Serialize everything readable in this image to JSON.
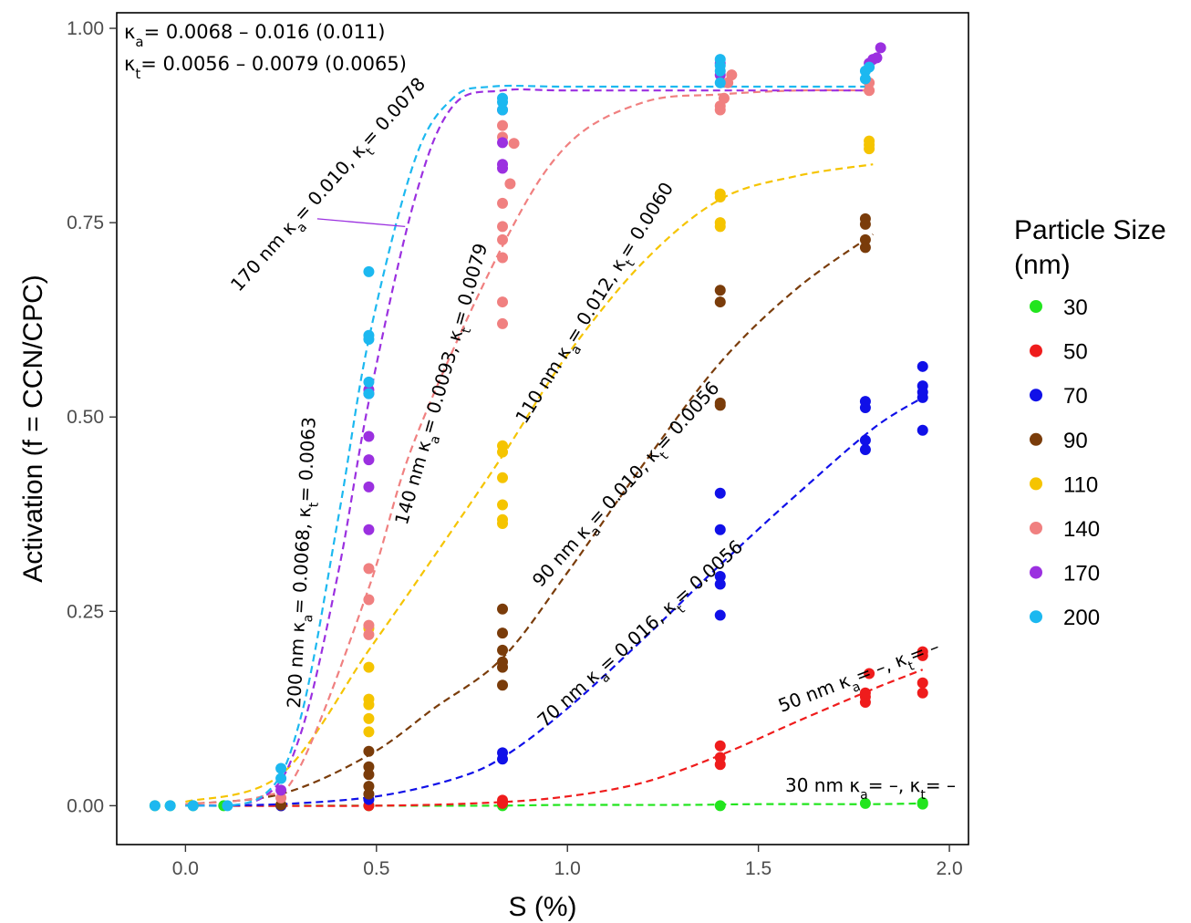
{
  "chart_data": {
    "type": "scatter",
    "xlabel": "S (%)",
    "ylabel": "Activation (f = CCN/CPC)",
    "xlim": [
      -0.18,
      2.05
    ],
    "ylim": [
      -0.05,
      1.02
    ],
    "x_ticks": [
      0.0,
      0.5,
      1.0,
      1.5,
      2.0
    ],
    "x_tick_labels": [
      "0.0",
      "0.5",
      "1.0",
      "1.5",
      "2.0"
    ],
    "y_ticks": [
      0.0,
      0.25,
      0.5,
      0.75,
      1.0
    ],
    "y_tick_labels": [
      "0.00",
      "0.25",
      "0.50",
      "0.75",
      "1.00"
    ],
    "grid": false,
    "legend": {
      "title": [
        "Particle Size",
        "(nm)"
      ],
      "placement": "right",
      "entries": [
        "30",
        "50",
        "70",
        "90",
        "110",
        "140",
        "170",
        "200"
      ]
    },
    "summary": [
      {
        "parts": [
          [
            "κ",
            ""
          ],
          [
            "a",
            "sub"
          ],
          [
            "= 0.0068 – 0.016 (0.011)",
            ""
          ]
        ]
      },
      {
        "parts": [
          [
            "κ",
            ""
          ],
          [
            "t",
            "sub"
          ],
          [
            "= 0.0056 – 0.0079 (0.0065)",
            ""
          ]
        ]
      }
    ],
    "series": [
      {
        "name": "30",
        "color": "#22e51e",
        "x": [
          -0.08,
          -0.04,
          0.02,
          0.1,
          0.25,
          0.48,
          0.83,
          1.4,
          1.78,
          1.93,
          1.93
        ],
        "y": [
          0.0,
          0.0,
          0.0,
          0.0,
          0.0,
          0.0,
          0.0,
          0.0,
          0.003,
          0.004,
          0.002
        ],
        "fit": {
          "x": [
            0.0,
            0.25,
            0.5,
            0.8,
            1.0,
            1.3,
            1.5,
            1.8,
            1.93
          ],
          "y": [
            0.0,
            0.0,
            0.0,
            0.0,
            0.001,
            0.001,
            0.002,
            0.002,
            0.003
          ]
        }
      },
      {
        "name": "50",
        "color": "#ef1c1c",
        "x": [
          0.25,
          0.48,
          0.83,
          0.83,
          1.4,
          1.4,
          1.4,
          1.78,
          1.78,
          1.78,
          1.79,
          1.93,
          1.93,
          1.93,
          1.93
        ],
        "y": [
          0.0,
          0.0,
          0.003,
          0.007,
          0.053,
          0.062,
          0.077,
          0.133,
          0.14,
          0.145,
          0.17,
          0.145,
          0.158,
          0.193,
          0.198
        ],
        "fit": {
          "x": [
            0.0,
            0.5,
            0.8,
            1.0,
            1.2,
            1.4,
            1.6,
            1.8,
            1.93
          ],
          "y": [
            0.0,
            0.0,
            0.004,
            0.012,
            0.03,
            0.065,
            0.108,
            0.15,
            0.175
          ]
        }
      },
      {
        "name": "70",
        "color": "#1010e8",
        "x": [
          0.25,
          0.48,
          0.83,
          0.83,
          1.4,
          1.4,
          1.4,
          1.4,
          1.4,
          1.78,
          1.78,
          1.78,
          1.78,
          1.93,
          1.93,
          1.93,
          1.93,
          1.93
        ],
        "y": [
          0.0,
          0.008,
          0.06,
          0.068,
          0.245,
          0.285,
          0.295,
          0.355,
          0.402,
          0.458,
          0.47,
          0.512,
          0.52,
          0.483,
          0.525,
          0.532,
          0.54,
          0.565
        ],
        "fit": {
          "x": [
            0.0,
            0.25,
            0.5,
            0.7,
            0.83,
            1.0,
            1.2,
            1.4,
            1.6,
            1.8,
            1.93
          ],
          "y": [
            0.0,
            0.002,
            0.012,
            0.034,
            0.062,
            0.125,
            0.215,
            0.31,
            0.4,
            0.485,
            0.525
          ]
        }
      },
      {
        "name": "90",
        "color": "#7a3c0a",
        "x": [
          0.25,
          0.48,
          0.48,
          0.48,
          0.48,
          0.48,
          0.83,
          0.83,
          0.83,
          0.83,
          0.83,
          0.83,
          1.4,
          1.4,
          1.4,
          1.4,
          1.78,
          1.78,
          1.78,
          1.78
        ],
        "y": [
          0.001,
          0.015,
          0.025,
          0.04,
          0.05,
          0.07,
          0.155,
          0.178,
          0.185,
          0.2,
          0.222,
          0.253,
          0.515,
          0.518,
          0.648,
          0.663,
          0.718,
          0.728,
          0.748,
          0.755
        ],
        "fit": {
          "x": [
            0.0,
            0.25,
            0.48,
            0.65,
            0.83,
            1.0,
            1.2,
            1.4,
            1.6,
            1.8
          ],
          "y": [
            0.002,
            0.015,
            0.065,
            0.125,
            0.19,
            0.3,
            0.44,
            0.57,
            0.665,
            0.735
          ]
        }
      },
      {
        "name": "110",
        "color": "#f5c400",
        "x": [
          0.48,
          0.48,
          0.48,
          0.48,
          0.48,
          0.48,
          0.83,
          0.83,
          0.83,
          0.83,
          0.83,
          0.83,
          1.4,
          1.4,
          1.4,
          1.4,
          1.79,
          1.79,
          1.79
        ],
        "y": [
          0.095,
          0.112,
          0.13,
          0.137,
          0.178,
          0.228,
          0.363,
          0.368,
          0.387,
          0.422,
          0.455,
          0.463,
          0.745,
          0.75,
          0.783,
          0.787,
          0.845,
          0.85,
          0.855
        ],
        "fit": {
          "x": [
            0.0,
            0.25,
            0.48,
            0.65,
            0.83,
            1.0,
            1.2,
            1.4,
            1.6,
            1.8
          ],
          "y": [
            0.005,
            0.04,
            0.2,
            0.32,
            0.45,
            0.58,
            0.7,
            0.78,
            0.81,
            0.825
          ]
        }
      },
      {
        "name": "140",
        "color": "#f08080",
        "x": [
          0.25,
          0.48,
          0.48,
          0.48,
          0.48,
          0.83,
          0.83,
          0.83,
          0.83,
          0.83,
          0.83,
          0.83,
          0.83,
          0.85,
          0.86,
          1.4,
          1.4,
          1.41,
          1.42,
          1.43,
          1.79,
          1.79
        ],
        "y": [
          0.01,
          0.22,
          0.232,
          0.265,
          0.305,
          0.62,
          0.648,
          0.705,
          0.728,
          0.745,
          0.775,
          0.86,
          0.875,
          0.8,
          0.852,
          0.895,
          0.9,
          0.91,
          0.93,
          0.94,
          0.92,
          0.93
        ],
        "fit": {
          "x": [
            0.0,
            0.2,
            0.3,
            0.48,
            0.6,
            0.83,
            1.0,
            1.2,
            1.4,
            1.6,
            1.8
          ],
          "y": [
            0.002,
            0.012,
            0.05,
            0.28,
            0.47,
            0.72,
            0.85,
            0.905,
            0.915,
            0.92,
            0.92
          ]
        }
      },
      {
        "name": "170",
        "color": "#9b30e0",
        "x": [
          0.25,
          0.48,
          0.48,
          0.48,
          0.48,
          0.48,
          0.48,
          0.83,
          0.83,
          0.83,
          0.83,
          1.4,
          1.4,
          1.79,
          1.8,
          1.81,
          1.82
        ],
        "y": [
          0.02,
          0.355,
          0.41,
          0.445,
          0.475,
          0.535,
          0.53,
          0.82,
          0.825,
          0.853,
          0.895,
          0.94,
          0.955,
          0.955,
          0.96,
          0.962,
          0.975
        ],
        "fit": {
          "x": [
            0.0,
            0.2,
            0.3,
            0.4,
            0.48,
            0.6,
            0.7,
            0.83,
            1.0,
            1.4,
            1.8
          ],
          "y": [
            0.0,
            0.01,
            0.09,
            0.3,
            0.52,
            0.78,
            0.9,
            0.92,
            0.92,
            0.92,
            0.92
          ]
        }
      },
      {
        "name": "200",
        "color": "#1cb8f0",
        "x": [
          -0.08,
          -0.04,
          0.02,
          0.11,
          0.25,
          0.25,
          0.48,
          0.48,
          0.48,
          0.48,
          0.48,
          0.83,
          0.83,
          0.83,
          1.4,
          1.4,
          1.4,
          1.4,
          1.78,
          1.78,
          1.79
        ],
        "y": [
          0.0,
          0.0,
          0.0,
          0.0,
          0.035,
          0.048,
          0.53,
          0.545,
          0.6,
          0.605,
          0.687,
          0.895,
          0.905,
          0.91,
          0.93,
          0.945,
          0.952,
          0.96,
          0.935,
          0.945,
          0.95
        ],
        "fit": {
          "x": [
            0.0,
            0.2,
            0.3,
            0.4,
            0.48,
            0.6,
            0.7,
            0.8,
            1.0,
            1.4,
            1.8
          ],
          "y": [
            0.0,
            0.012,
            0.11,
            0.37,
            0.6,
            0.83,
            0.91,
            0.925,
            0.925,
            0.925,
            0.925
          ]
        }
      }
    ],
    "annotations": [
      {
        "size": "200 nm",
        "ka": "0.0068",
        "kt": "0.0063",
        "x": 0.3,
        "y": 0.125,
        "angle": -87
      },
      {
        "size": "170 nm",
        "ka": "0.010",
        "kt": "0.0078",
        "x": 0.14,
        "y": 0.66,
        "angle": -48
      },
      {
        "size": "140 nm",
        "ka": "0.0093",
        "kt": "0.0079",
        "x": 0.58,
        "y": 0.36,
        "angle": -74
      },
      {
        "size": "110 nm",
        "ka": "0.012",
        "kt": "0.0060",
        "x": 0.89,
        "y": 0.49,
        "angle": -58
      },
      {
        "size": "90 nm",
        "ka": "0.010",
        "kt": "0.0056",
        "x": 0.93,
        "y": 0.28,
        "angle": -48
      },
      {
        "size": "70 nm",
        "ka": "0.016",
        "kt": "0.0056",
        "x": 0.94,
        "y": 0.1,
        "angle": -42
      },
      {
        "size": "50 nm",
        "ka": "–",
        "kt": "–",
        "x": 1.56,
        "y": 0.12,
        "angle": -21
      },
      {
        "size": "30 nm",
        "ka": "–",
        "kt": "–",
        "x": 1.57,
        "y": 0.018,
        "angle": 0
      }
    ],
    "pointer_line": {
      "from": [
        0.345,
        0.755
      ],
      "to": [
        0.575,
        0.745
      ],
      "color": "#9b30e0"
    }
  }
}
